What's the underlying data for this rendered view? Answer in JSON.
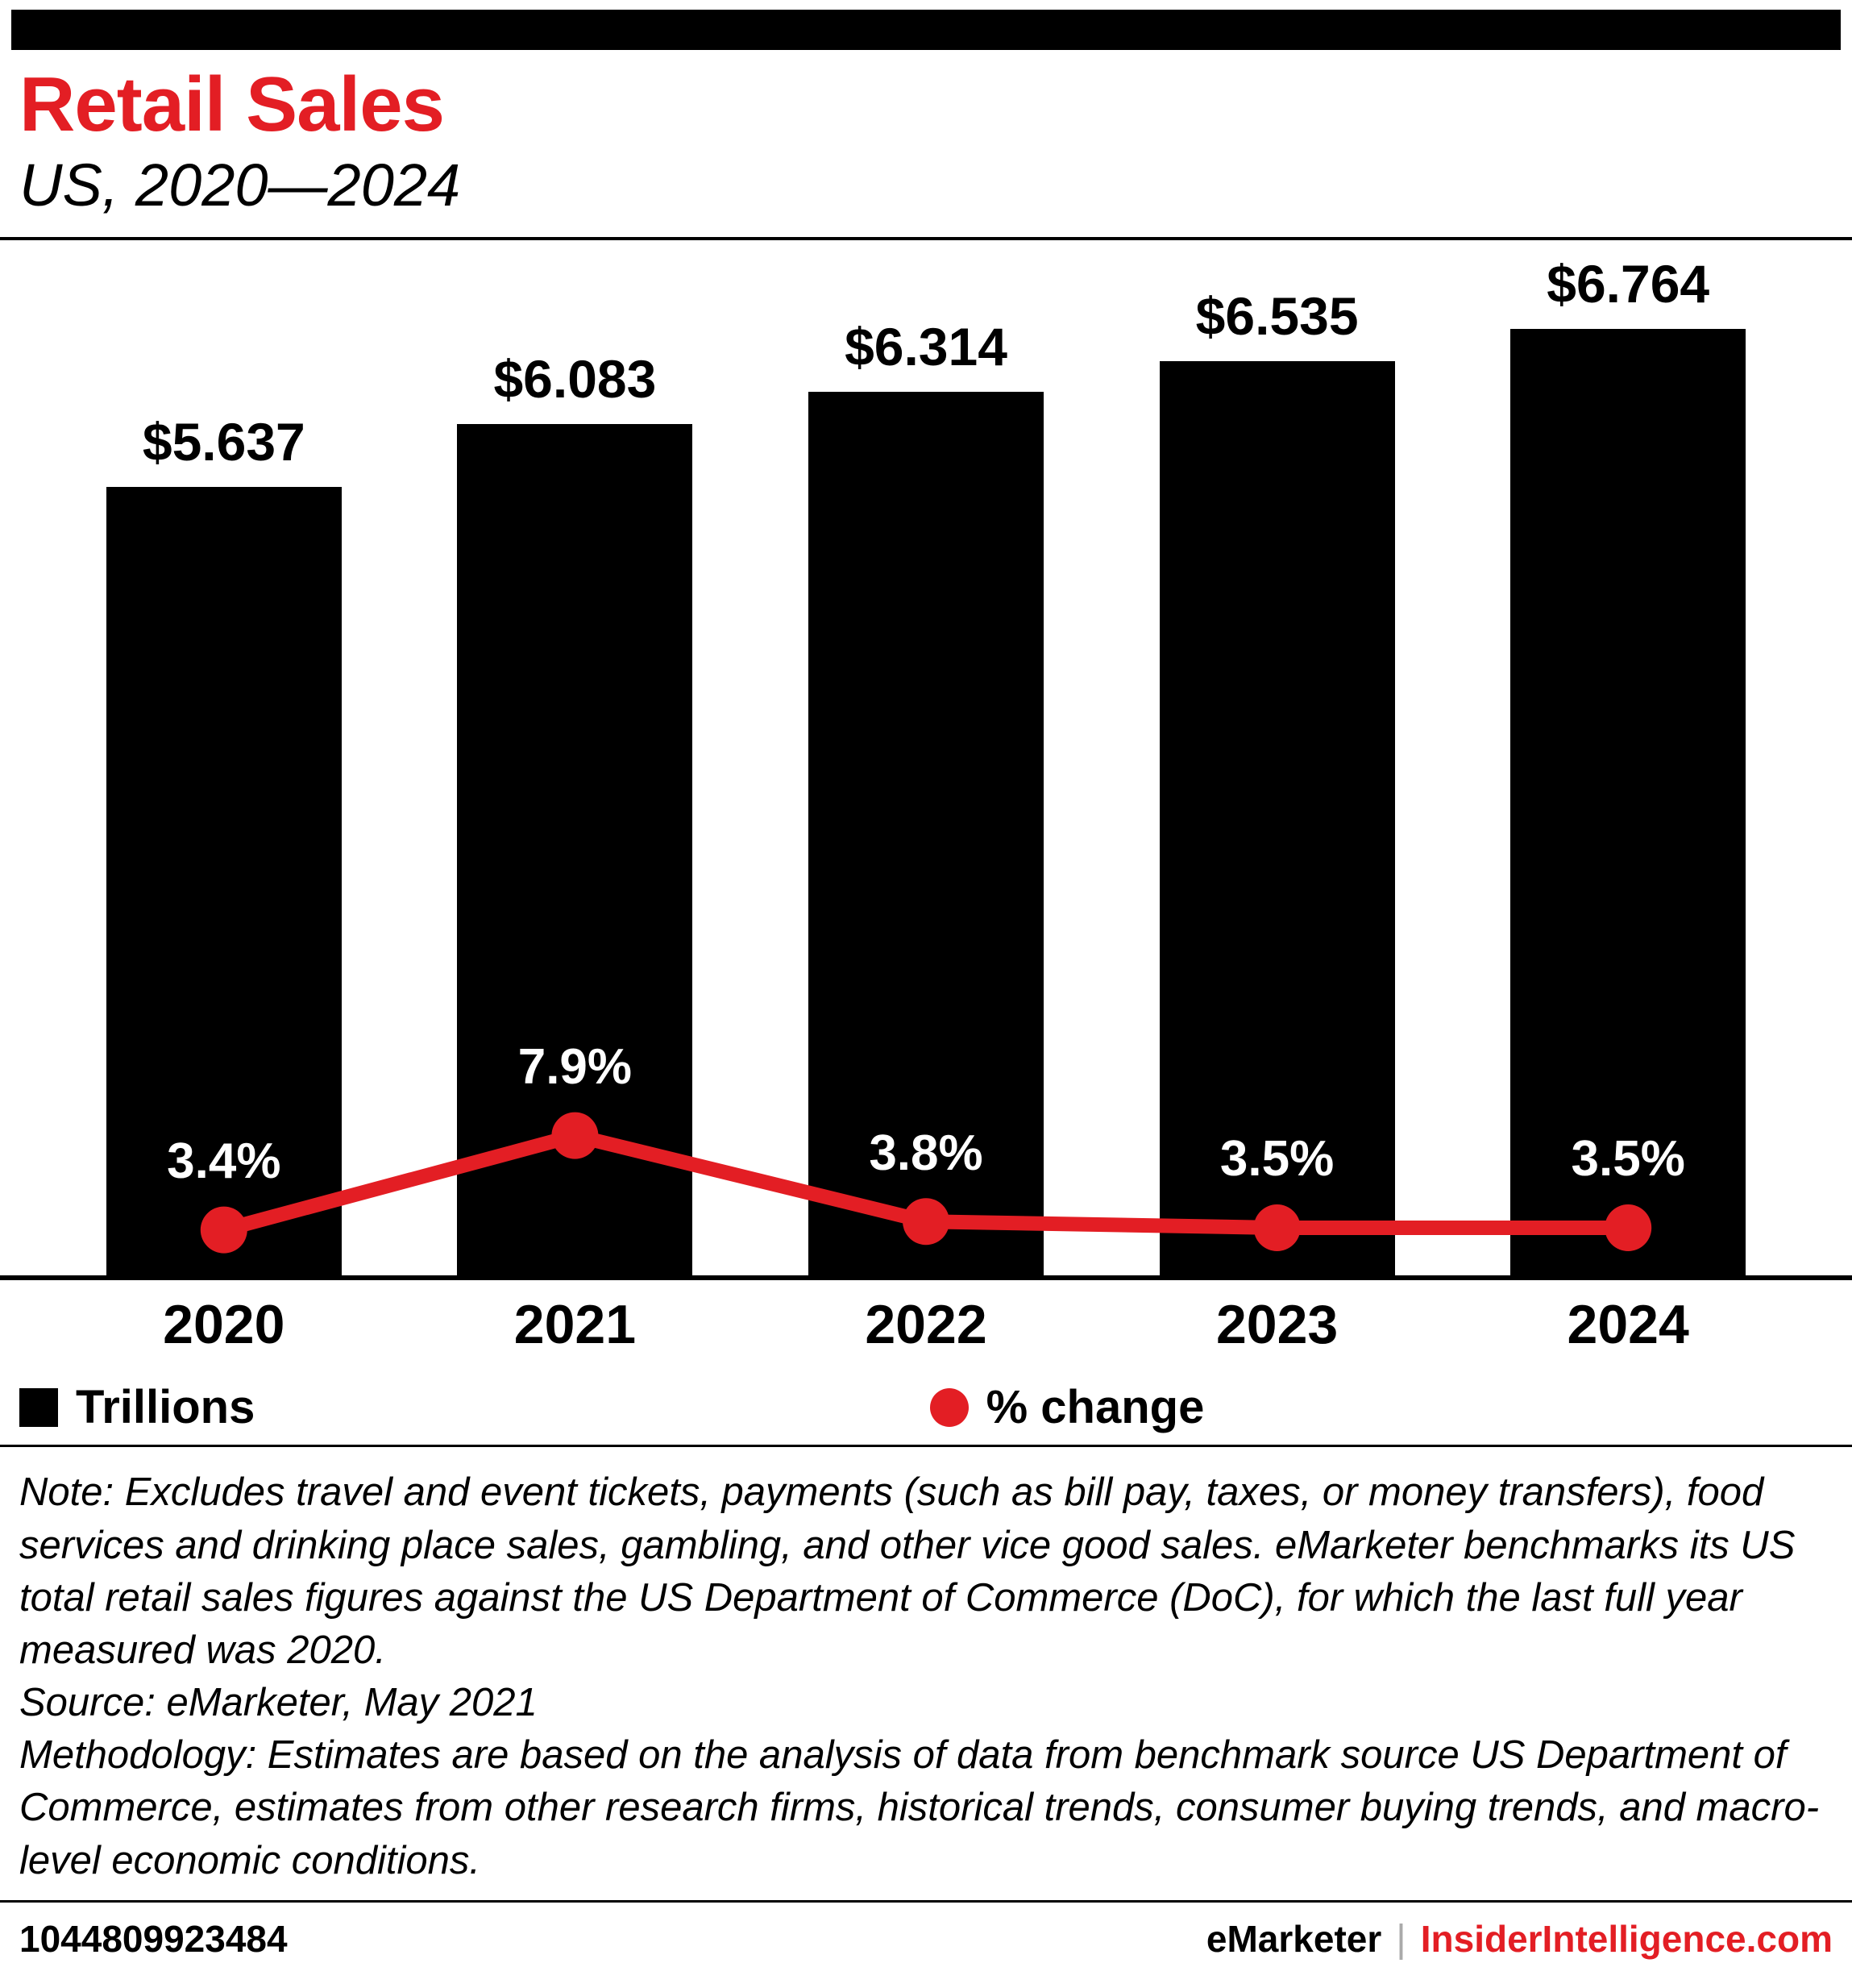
{
  "header": {
    "title": "Retail Sales",
    "subtitle": "US, 2020—2024"
  },
  "chart_data": {
    "type": "bar",
    "categories": [
      "2020",
      "2021",
      "2022",
      "2023",
      "2024"
    ],
    "series": [
      {
        "name": "Trillions",
        "type": "bar",
        "values": [
          5.637,
          6.083,
          6.314,
          6.535,
          6.764
        ],
        "labels": [
          "$5.637",
          "$6.083",
          "$6.314",
          "$6.535",
          "$6.764"
        ],
        "color": "#000000"
      },
      {
        "name": "% change",
        "type": "line",
        "values": [
          3.4,
          7.9,
          3.8,
          3.5,
          3.5
        ],
        "labels": [
          "3.4%",
          "7.9%",
          "3.8%",
          "3.5%",
          "3.5%"
        ],
        "color": "#e31e24"
      }
    ],
    "title": "Retail Sales",
    "subtitle": "US, 2020—2024",
    "xlabel": "",
    "ylabel": "",
    "ylim": [
      0,
      7
    ],
    "grid": false,
    "legend_position": "bottom"
  },
  "legend": {
    "bar_label": "Trillions",
    "line_label": "% change"
  },
  "notes": {
    "note": "Note: Excludes travel and event tickets, payments (such as bill pay, taxes, or money transfers), food services and drinking place sales, gambling, and other vice good sales. eMarketer benchmarks its US total retail sales figures against the US Department of Commerce (DoC), for which the last full year measured was 2020.",
    "source": "Source: eMarketer, May 2021",
    "methodology": "Methodology: Estimates are based on the analysis of data from benchmark source US Department of Commerce, estimates from other research firms, historical trends, consumer buying trends, and macro-level economic conditions."
  },
  "footer": {
    "chart_id": "1044809923484",
    "brand": "eMarketer",
    "separator": "|",
    "site": "InsiderIntelligence.com"
  },
  "colors": {
    "accent": "#e31e24",
    "bar": "#000000"
  }
}
